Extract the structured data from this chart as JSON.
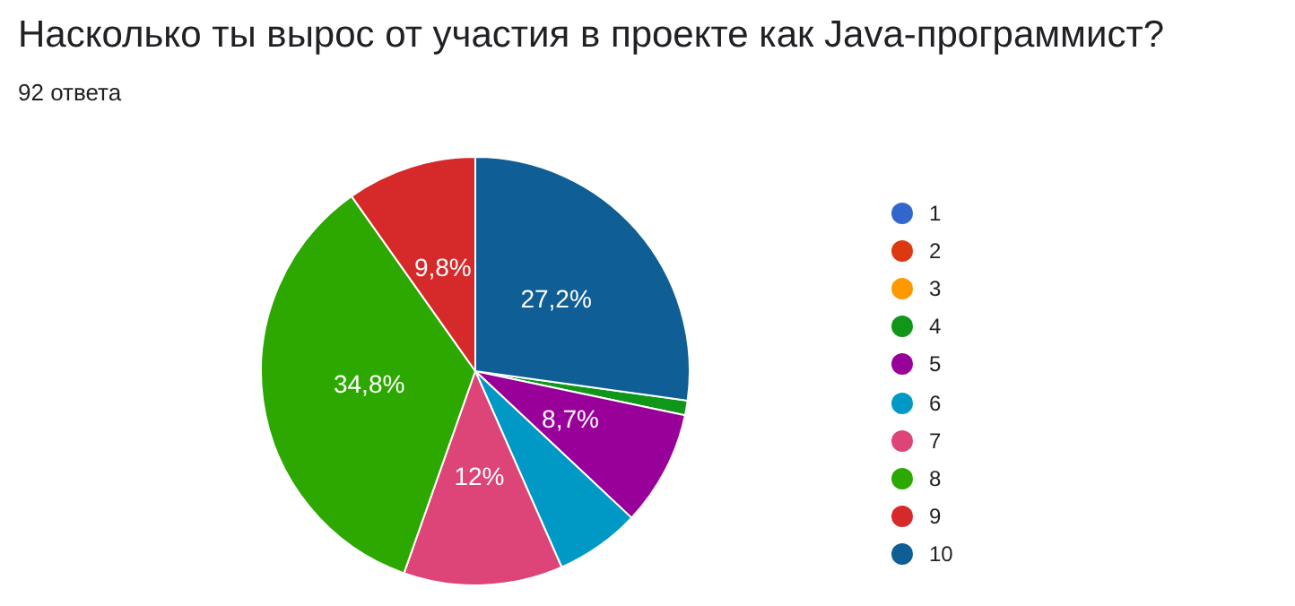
{
  "chart_data": {
    "type": "pie",
    "title": "Насколько ты вырос от участия в проекте как Java-программист?",
    "subtitle": "92 ответа",
    "categories": [
      "1",
      "2",
      "3",
      "4",
      "5",
      "6",
      "7",
      "8",
      "9",
      "10"
    ],
    "values": [
      0,
      0,
      0,
      1.1,
      8.7,
      6.4,
      12,
      34.8,
      9.8,
      27.2
    ],
    "colors": [
      "#3366cc",
      "#dc3912",
      "#ff9900",
      "#109618",
      "#990099",
      "#0099c6",
      "#dd4477",
      "#2ca800",
      "#d62a2a",
      "#0f5e96"
    ],
    "value_labels": [
      null,
      null,
      null,
      null,
      "8,7%",
      null,
      "12%",
      "34,8%",
      "9,8%",
      "27,2%"
    ],
    "legend": "right"
  }
}
